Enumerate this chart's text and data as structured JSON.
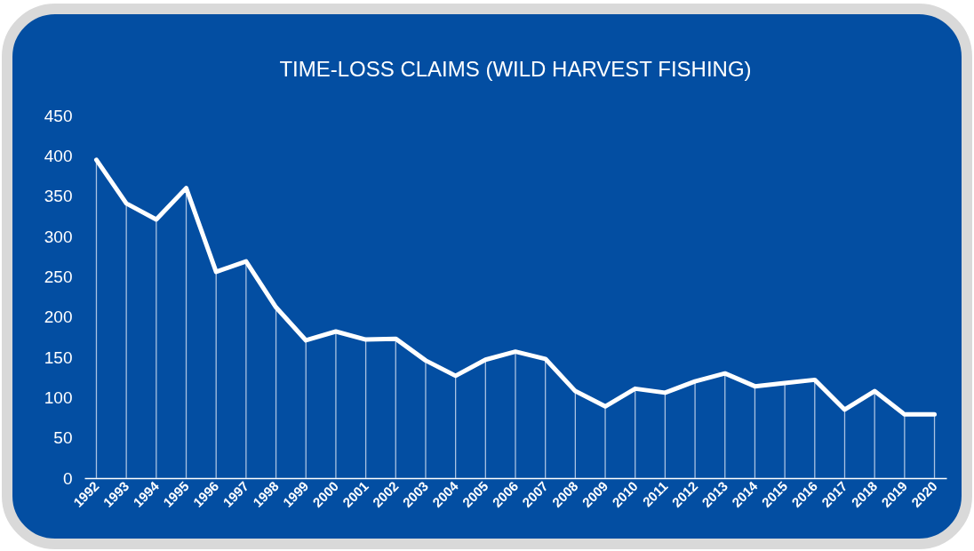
{
  "chart_data": {
    "type": "line",
    "title": "TIME-LOSS CLAIMS (WILD HARVEST FISHING)",
    "categories": [
      "1992",
      "1993",
      "1994",
      "1995",
      "1996",
      "1997",
      "1998",
      "1999",
      "2000",
      "2001",
      "2002",
      "2003",
      "2004",
      "2005",
      "2006",
      "2007",
      "2008",
      "2009",
      "2010",
      "2011",
      "2012",
      "2013",
      "2014",
      "2015",
      "2016",
      "2017",
      "2018",
      "2019",
      "2020"
    ],
    "series": [
      {
        "type": "bar",
        "color": "#a9c2e2",
        "values": [
          395,
          341,
          321,
          360,
          256,
          269,
          212,
          171,
          182,
          172,
          173,
          146,
          127,
          147,
          157,
          148,
          108,
          89,
          111,
          106,
          120,
          130,
          114,
          118,
          122,
          85,
          108,
          79,
          79
        ]
      },
      {
        "color": "#ffffff",
        "values": [
          395,
          341,
          321,
          360,
          256,
          269,
          212,
          171,
          182,
          172,
          173,
          146,
          127,
          147,
          157,
          148,
          108,
          89,
          111,
          106,
          120,
          130,
          114,
          118,
          122,
          85,
          108,
          79,
          79
        ]
      }
    ],
    "ylim": [
      0,
      450
    ],
    "yticks": [
      0,
      50,
      100,
      150,
      200,
      250,
      300,
      350,
      400,
      450
    ]
  }
}
